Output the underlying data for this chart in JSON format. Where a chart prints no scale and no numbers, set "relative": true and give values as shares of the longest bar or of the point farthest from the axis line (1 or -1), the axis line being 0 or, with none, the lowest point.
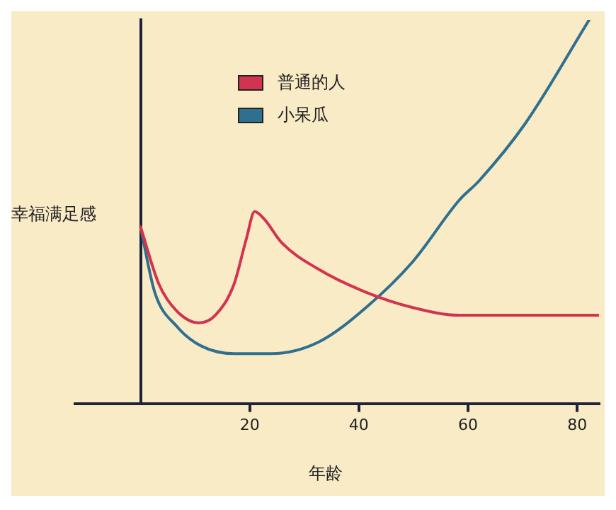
{
  "chart_data": {
    "type": "line",
    "relative": true,
    "ylabel": "幸福满足感",
    "xlabel": "年龄",
    "xlim": [
      -12,
      84
    ],
    "xticks": [
      20,
      40,
      60,
      80
    ],
    "grid": false,
    "legend": "top",
    "marker": "none",
    "line_style": "solid",
    "series": [
      {
        "name": "普通的人",
        "color": "#d2334e",
        "x": [
          0,
          3.4,
          6.7,
          10.6,
          13.7,
          17.1,
          19.4,
          20.9,
          22.7,
          25.8,
          32.6,
          41.3,
          49.9,
          58.4,
          67.2,
          84
        ],
        "values": [
          0.46,
          0.31,
          0.24,
          0.21,
          0.23,
          0.31,
          0.43,
          0.5,
          0.48,
          0.42,
          0.35,
          0.29,
          0.25,
          0.23,
          0.23,
          0.23
        ]
      },
      {
        "name": "小呆瓜",
        "color": "#2f6f8f",
        "x": [
          0,
          2.6,
          6.7,
          11.1,
          17.1,
          24,
          32.6,
          41.3,
          49.9,
          58.4,
          62,
          70.5,
          82.2
        ],
        "values": [
          0.46,
          0.29,
          0.2,
          0.15,
          0.13,
          0.13,
          0.16,
          0.25,
          0.37,
          0.53,
          0.58,
          0.73,
          1
        ]
      }
    ]
  }
}
